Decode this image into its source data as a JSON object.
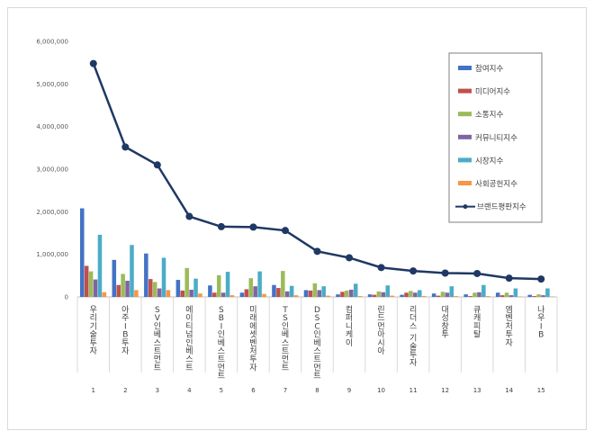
{
  "chart_data": {
    "type": "bar+line",
    "ylim": [
      0,
      6000000
    ],
    "y_ticks": [
      "0",
      "1,000,000",
      "2,000,000",
      "3,000,000",
      "4,000,000",
      "5,000,000",
      "6,000,000"
    ],
    "categories": [
      "우리기술투자",
      "아주IB투자",
      "SV인베스트먼트",
      "에이티넘인베스트",
      "SBI인베스트먼트",
      "미래에셋벤처투자",
      "TS인베스트먼트",
      "DSC인베스트먼트",
      "컴퍼니케이",
      "린드먼아시아",
      "리더스 기술투자",
      "대성창투",
      "큐캐피탈",
      "엠벤처투자",
      "나우IB"
    ],
    "ranks": [
      "1",
      "2",
      "3",
      "4",
      "5",
      "6",
      "7",
      "8",
      "9",
      "10",
      "11",
      "12",
      "13",
      "14",
      "15"
    ],
    "series": [
      {
        "name": "참여지수",
        "color": "#4472c4",
        "kind": "bar",
        "values": [
          2080000,
          870000,
          1020000,
          400000,
          270000,
          100000,
          280000,
          160000,
          60000,
          60000,
          50000,
          80000,
          60000,
          100000,
          50000
        ]
      },
      {
        "name": "미디어지수",
        "color": "#c0504d",
        "kind": "bar",
        "values": [
          730000,
          280000,
          420000,
          150000,
          100000,
          180000,
          210000,
          150000,
          120000,
          50000,
          100000,
          30000,
          20000,
          40000,
          20000
        ]
      },
      {
        "name": "소통지수",
        "color": "#9bbb59",
        "kind": "bar",
        "values": [
          600000,
          540000,
          350000,
          680000,
          510000,
          440000,
          610000,
          320000,
          150000,
          130000,
          140000,
          120000,
          100000,
          100000,
          60000
        ]
      },
      {
        "name": "커뮤니티지수",
        "color": "#8064a2",
        "kind": "bar",
        "values": [
          410000,
          380000,
          200000,
          170000,
          100000,
          250000,
          130000,
          160000,
          170000,
          110000,
          100000,
          100000,
          110000,
          40000,
          40000
        ]
      },
      {
        "name": "시장지수",
        "color": "#4bacc6",
        "kind": "bar",
        "values": [
          1460000,
          1220000,
          920000,
          430000,
          590000,
          600000,
          260000,
          250000,
          310000,
          270000,
          160000,
          250000,
          280000,
          200000,
          200000
        ]
      },
      {
        "name": "사회공헌지수",
        "color": "#f79646",
        "kind": "bar",
        "values": [
          110000,
          160000,
          160000,
          80000,
          40000,
          70000,
          40000,
          30000,
          20000,
          30000,
          20000,
          20000,
          20000,
          10000,
          10000
        ]
      },
      {
        "name": "브랜드평판지수",
        "color": "#1f3864",
        "kind": "line",
        "values": [
          5480000,
          3520000,
          3100000,
          1890000,
          1650000,
          1640000,
          1560000,
          1070000,
          920000,
          690000,
          610000,
          560000,
          550000,
          440000,
          420000
        ]
      }
    ]
  }
}
